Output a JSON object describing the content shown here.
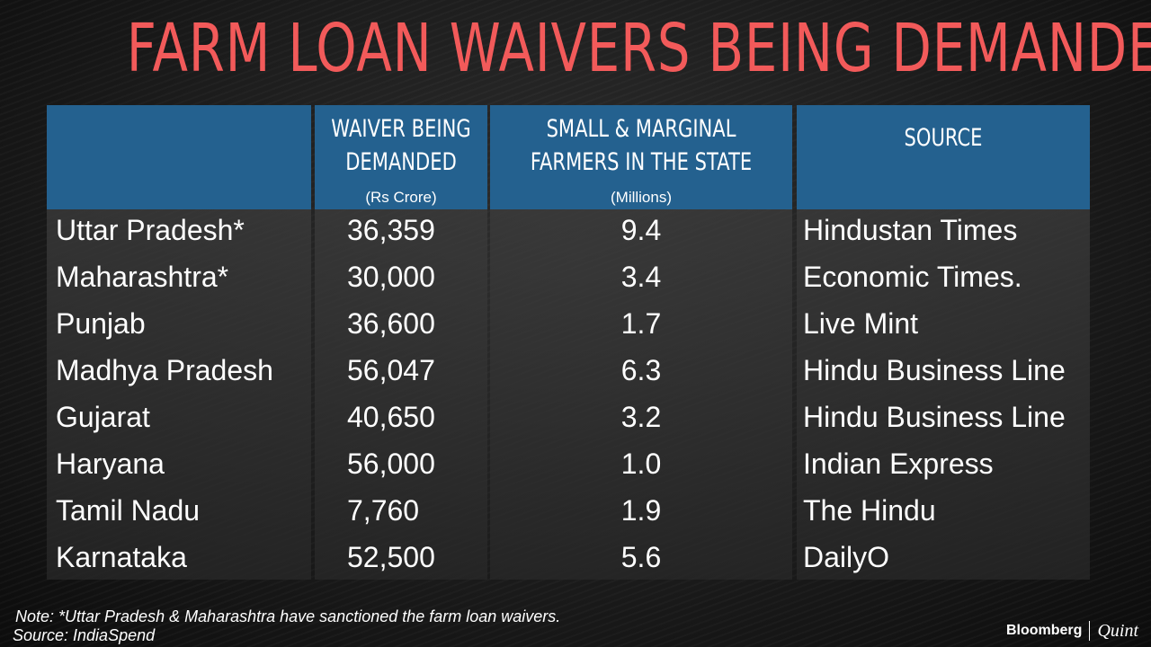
{
  "title": "Farm Loan Waivers Being Demanded",
  "headers": {
    "state": "",
    "waiver": "Waiver Being Demanded",
    "waiver_unit": "(Rs Crore)",
    "farmers": "Small & Marginal Farmers in the State",
    "farmers_unit": "(Millions)",
    "source": "Source"
  },
  "colors": {
    "title": "#f25a5a",
    "header_bg": "#24618f"
  },
  "chart_data": {
    "type": "table",
    "title": "Farm Loan Waivers Being Demanded",
    "columns": [
      "",
      "Waiver Being Demanded (Rs Crore)",
      "Small & Marginal Farmers in the State (Millions)",
      "Source"
    ],
    "rows": [
      {
        "state": "Uttar Pradesh*",
        "waiver": "36,359",
        "farmers": "9.4",
        "source": "Hindustan Times"
      },
      {
        "state": "Maharashtra*",
        "waiver": "30,000",
        "farmers": "3.4",
        "source": "Economic Times."
      },
      {
        "state": "Punjab",
        "waiver": "36,600",
        "farmers": "1.7",
        "source": "Live Mint"
      },
      {
        "state": "Madhya Pradesh",
        "waiver": "56,047",
        "farmers": "6.3",
        "source": "Hindu Business Line"
      },
      {
        "state": "Gujarat",
        "waiver": "40,650",
        "farmers": "3.2",
        "source": "Hindu Business Line"
      },
      {
        "state": "Haryana",
        "waiver": "56,000",
        "farmers": "1.0",
        "source": "Indian Express"
      },
      {
        "state": "Tamil Nadu",
        "waiver": "7,760",
        "farmers": "1.9",
        "source": "The Hindu"
      },
      {
        "state": "Karnataka",
        "waiver": "52,500",
        "farmers": "5.6",
        "source": "DailyO"
      }
    ]
  },
  "footer": {
    "note": "Note: *Uttar Pradesh & Maharashtra have sanctioned the farm loan waivers.",
    "source": "Source: IndiaSpend"
  },
  "logo": {
    "brand": "Bloomberg",
    "sub": "Quint"
  }
}
